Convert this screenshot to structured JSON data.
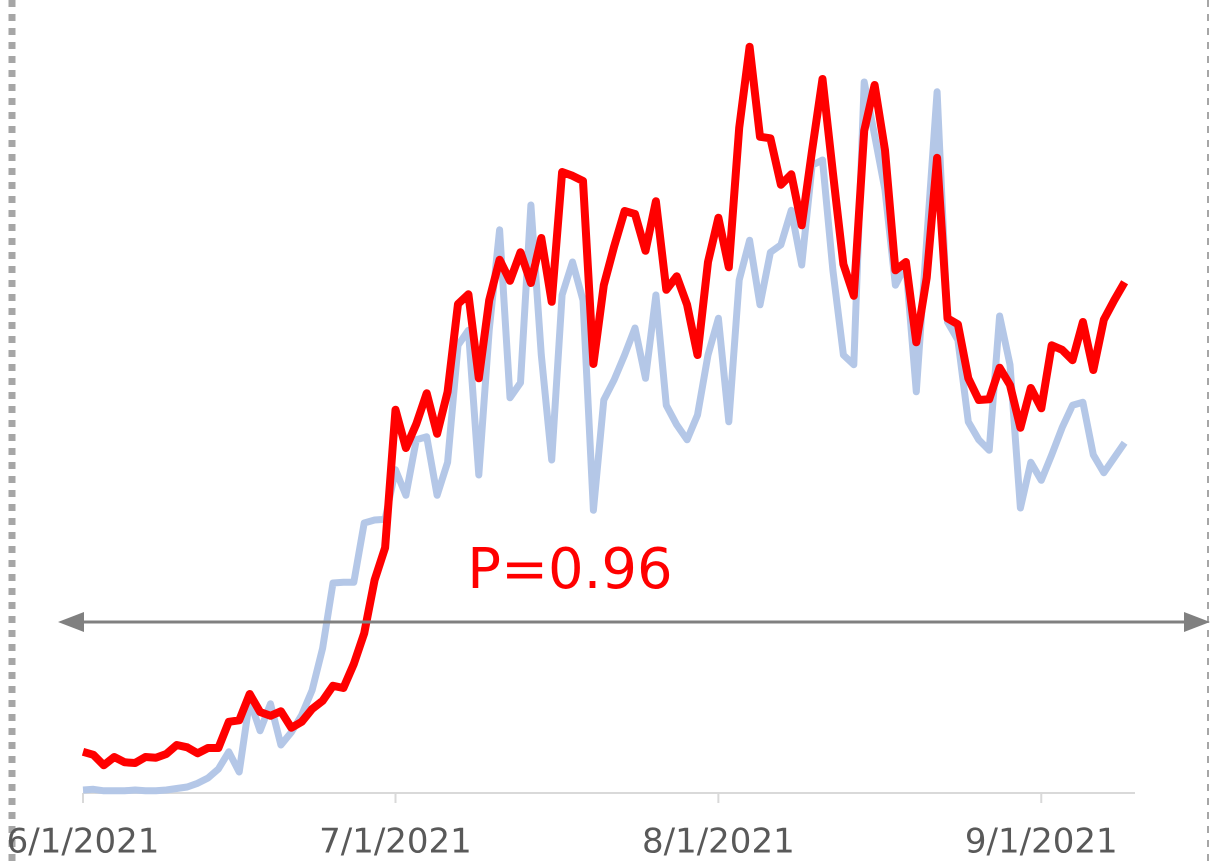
{
  "chart_data": {
    "type": "line",
    "annotation": "P=0.96",
    "x": [
      "2021-06-01",
      "2021-06-02",
      "2021-06-03",
      "2021-06-04",
      "2021-06-05",
      "2021-06-06",
      "2021-06-07",
      "2021-06-08",
      "2021-06-09",
      "2021-06-10",
      "2021-06-11",
      "2021-06-12",
      "2021-06-13",
      "2021-06-14",
      "2021-06-15",
      "2021-06-16",
      "2021-06-17",
      "2021-06-18",
      "2021-06-19",
      "2021-06-20",
      "2021-06-21",
      "2021-06-22",
      "2021-06-23",
      "2021-06-24",
      "2021-06-25",
      "2021-06-26",
      "2021-06-27",
      "2021-06-28",
      "2021-06-29",
      "2021-06-30",
      "2021-07-01",
      "2021-07-02",
      "2021-07-03",
      "2021-07-04",
      "2021-07-05",
      "2021-07-06",
      "2021-07-07",
      "2021-07-08",
      "2021-07-09",
      "2021-07-10",
      "2021-07-11",
      "2021-07-12",
      "2021-07-13",
      "2021-07-14",
      "2021-07-15",
      "2021-07-16",
      "2021-07-17",
      "2021-07-18",
      "2021-07-19",
      "2021-07-20",
      "2021-07-21",
      "2021-07-22",
      "2021-07-23",
      "2021-07-24",
      "2021-07-25",
      "2021-07-26",
      "2021-07-27",
      "2021-07-28",
      "2021-07-29",
      "2021-07-30",
      "2021-07-31",
      "2021-08-01",
      "2021-08-02",
      "2021-08-03",
      "2021-08-04",
      "2021-08-05",
      "2021-08-06",
      "2021-08-07",
      "2021-08-08",
      "2021-08-09",
      "2021-08-10",
      "2021-08-11",
      "2021-08-12",
      "2021-08-13",
      "2021-08-14",
      "2021-08-15",
      "2021-08-16",
      "2021-08-17",
      "2021-08-18",
      "2021-08-19",
      "2021-08-20",
      "2021-08-21",
      "2021-08-22",
      "2021-08-23",
      "2021-08-24",
      "2021-08-25",
      "2021-08-26",
      "2021-08-27",
      "2021-08-28",
      "2021-08-29",
      "2021-08-30",
      "2021-08-31",
      "2021-09-01",
      "2021-09-02",
      "2021-09-03",
      "2021-09-04",
      "2021-09-05",
      "2021-09-06",
      "2021-09-07",
      "2021-09-08",
      "2021-09-09"
    ],
    "series": [
      {
        "color": "#b4c7e7",
        "values": [
          0.4,
          0.5,
          0.3,
          0.3,
          0.3,
          0.4,
          0.3,
          0.3,
          0.4,
          0.6,
          0.8,
          1.3,
          2.0,
          3.2,
          5.5,
          2.8,
          12.4,
          8.3,
          11.9,
          6.4,
          8.1,
          10.4,
          13.7,
          19.3,
          28.0,
          28.1,
          28.1,
          36.0,
          36.4,
          36.5,
          43.1,
          39.7,
          47.1,
          47.5,
          39.7,
          44.1,
          59.7,
          61.7,
          42.4,
          61.7,
          75.1,
          52.7,
          54.7,
          78.4,
          58.4,
          44.4,
          66.4,
          70.8,
          65.7,
          37.7,
          52.4,
          55.1,
          58.4,
          62.0,
          55.3,
          66.4,
          51.7,
          49.1,
          47.1,
          50.4,
          58.4,
          63.3,
          49.5,
          68.4,
          73.7,
          65.1,
          72.1,
          73.1,
          77.7,
          70.4,
          83.7,
          84.4,
          69.7,
          58.4,
          57.1,
          94.8,
          87.7,
          80.4,
          67.7,
          70.4,
          53.5,
          73.7,
          93.5,
          62.8,
          60.4,
          49.5,
          47.1,
          45.7,
          63.6,
          57.1,
          38.0,
          44.1,
          41.7,
          45.1,
          48.7,
          51.7,
          52.1,
          45.1,
          42.7,
          44.7,
          46.7
        ]
      },
      {
        "color": "#ff0000",
        "values": [
          5.5,
          5.1,
          3.7,
          4.8,
          4.1,
          4.0,
          4.8,
          4.7,
          5.2,
          6.4,
          6.1,
          5.3,
          6.0,
          6.0,
          9.5,
          9.7,
          13.2,
          10.8,
          10.3,
          10.9,
          8.7,
          9.5,
          11.2,
          12.3,
          14.3,
          14.0,
          17.2,
          21.3,
          28.4,
          32.7,
          51.1,
          46.0,
          49.2,
          53.3,
          47.9,
          53.5,
          65.2,
          66.5,
          55.3,
          65.7,
          71.1,
          68.3,
          72.1,
          68.0,
          74.0,
          65.5,
          82.8,
          82.3,
          81.6,
          57.2,
          67.7,
          72.9,
          77.6,
          77.2,
          72.3,
          78.9,
          67.1,
          68.9,
          65.1,
          58.4,
          70.8,
          76.7,
          70.1,
          88.7,
          99.5,
          87.5,
          87.3,
          81.1,
          82.5,
          75.7,
          85.7,
          95.2,
          82.7,
          70.5,
          66.3,
          88.3,
          94.4,
          85.7,
          69.7,
          70.8,
          60.1,
          68.7,
          84.7,
          63.3,
          62.5,
          55.3,
          52.4,
          52.5,
          56.7,
          54.4,
          48.7,
          54.0,
          51.3,
          59.7,
          59.1,
          57.7,
          62.8,
          56.4,
          63.1,
          65.7,
          68.1
        ]
      }
    ],
    "xlim": [
      "2021-06-01",
      "2021-09-10"
    ],
    "xticks": [
      {
        "value": "2021-06-01",
        "label": "6/1/2021"
      },
      {
        "value": "2021-07-01",
        "label": "7/1/2021"
      },
      {
        "value": "2021-08-01",
        "label": "8/1/2021"
      },
      {
        "value": "2021-09-01",
        "label": "9/1/2021"
      }
    ],
    "ylim": [
      0,
      100
    ]
  }
}
